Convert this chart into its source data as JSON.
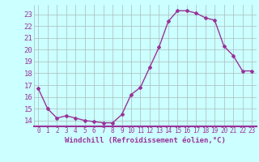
{
  "x": [
    0,
    1,
    2,
    3,
    4,
    5,
    6,
    7,
    8,
    9,
    10,
    11,
    12,
    13,
    14,
    15,
    16,
    17,
    18,
    19,
    20,
    21,
    22,
    23
  ],
  "y": [
    16.7,
    15.0,
    14.2,
    14.4,
    14.2,
    14.0,
    13.9,
    13.8,
    13.8,
    14.5,
    16.2,
    16.8,
    18.5,
    20.2,
    22.4,
    23.3,
    23.3,
    23.1,
    22.7,
    22.5,
    20.3,
    19.5,
    18.2,
    18.2
  ],
  "line_color": "#993399",
  "marker": "D",
  "marker_size": 2,
  "bg_color": "#ccffff",
  "grid_color": "#aabbbb",
  "xlabel": "Windchill (Refroidissement éolien,°C)",
  "xlabel_color": "#993399",
  "tick_color": "#993399",
  "ylim": [
    13.5,
    23.8
  ],
  "xlim": [
    -0.5,
    23.5
  ],
  "yticks": [
    14,
    15,
    16,
    17,
    18,
    19,
    20,
    21,
    22,
    23
  ],
  "xticks": [
    0,
    1,
    2,
    3,
    4,
    5,
    6,
    7,
    8,
    9,
    10,
    11,
    12,
    13,
    14,
    15,
    16,
    17,
    18,
    19,
    20,
    21,
    22,
    23
  ],
  "xlabel_fontsize": 6.5,
  "tick_fontsize": 5.5,
  "ytick_fontsize": 6.5,
  "linewidth": 1.0
}
